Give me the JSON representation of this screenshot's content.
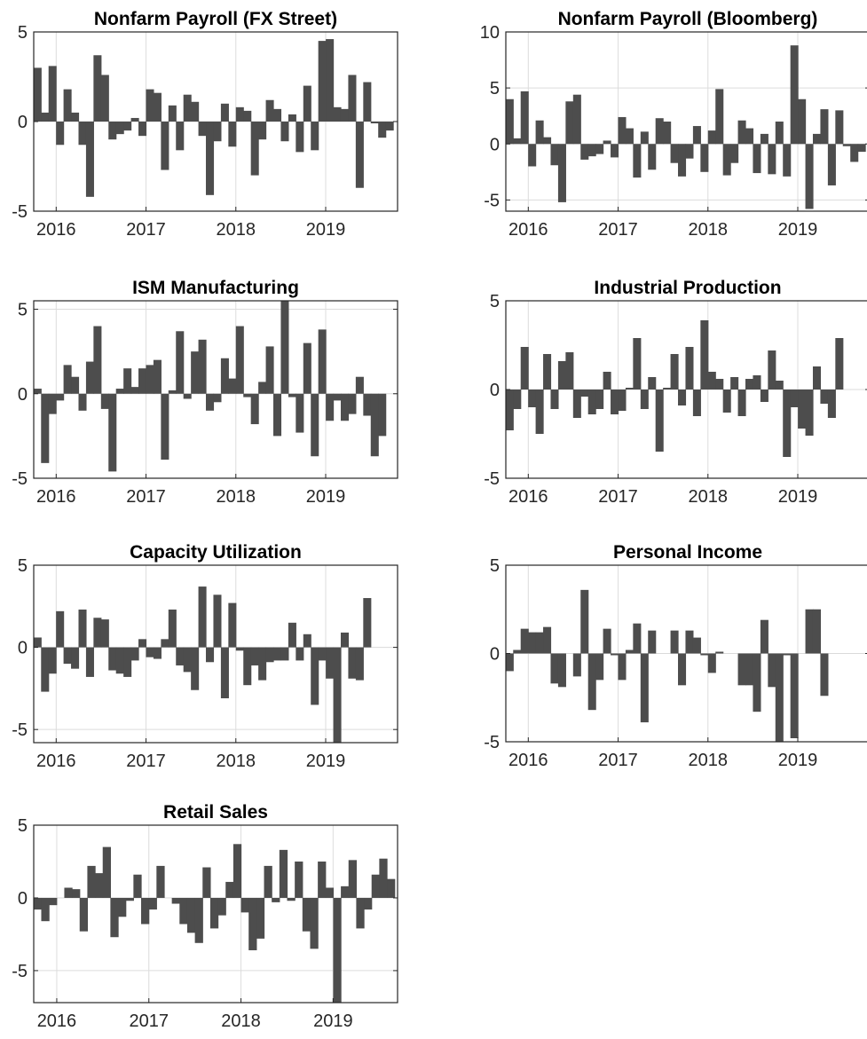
{
  "chart_data": [
    {
      "type": "bar",
      "title": "Nonfarm Payroll (FX Street)",
      "ylim": [
        -5,
        5
      ],
      "xlim": [
        2015.75,
        2019.8
      ],
      "yticks": [
        -5,
        0,
        5
      ],
      "xticks": [
        2016,
        2017,
        2018,
        2019
      ],
      "grid": true,
      "bar_color": "#4d4d4d",
      "x_start": 2015.79,
      "x_step": 0.0834,
      "values": [
        3.0,
        0.5,
        3.1,
        -1.3,
        1.8,
        0.5,
        -1.3,
        -4.2,
        3.7,
        2.6,
        -1.0,
        -0.7,
        -0.5,
        0.2,
        -0.8,
        1.8,
        1.6,
        -2.7,
        0.9,
        -1.6,
        1.5,
        1.1,
        -0.8,
        -4.1,
        -1.1,
        1.0,
        -1.4,
        0.8,
        0.6,
        -3.0,
        -1.0,
        1.2,
        0.7,
        -1.1,
        0.4,
        -1.7,
        2.0,
        -1.6,
        4.5,
        4.6,
        0.8,
        0.7,
        2.6,
        -3.7,
        2.2,
        -0.1,
        -0.9,
        -0.5
      ]
    },
    {
      "type": "bar",
      "title": "Nonfarm Payroll (Bloomberg)",
      "ylim": [
        -6,
        10
      ],
      "xlim": [
        2015.75,
        2019.8
      ],
      "yticks": [
        -5,
        0,
        5,
        10
      ],
      "xticks": [
        2016,
        2017,
        2018,
        2019
      ],
      "grid": true,
      "bar_color": "#4d4d4d",
      "x_start": 2015.79,
      "x_step": 0.0834,
      "values": [
        4.0,
        0.5,
        4.7,
        -2.0,
        2.1,
        0.6,
        -1.9,
        -5.2,
        3.8,
        4.4,
        -1.4,
        -1.1,
        -0.9,
        0.3,
        -1.2,
        2.4,
        1.4,
        -3.0,
        1.1,
        -2.3,
        2.3,
        2.0,
        -1.7,
        -2.9,
        -1.3,
        1.6,
        -2.5,
        1.2,
        4.9,
        -2.8,
        -1.7,
        2.1,
        1.4,
        -2.6,
        0.9,
        -2.7,
        2.0,
        -2.9,
        8.8,
        4.0,
        -5.8,
        0.9,
        3.1,
        -3.7,
        3.0,
        -0.2,
        -1.6,
        -0.7
      ]
    },
    {
      "type": "bar",
      "title": "ISM Manufacturing",
      "ylim": [
        -5,
        5.5
      ],
      "xlim": [
        2015.75,
        2019.8
      ],
      "yticks": [
        -5,
        0,
        5
      ],
      "xticks": [
        2016,
        2017,
        2018,
        2019
      ],
      "grid": true,
      "bar_color": "#4d4d4d",
      "x_start": 2015.79,
      "x_step": 0.0834,
      "values": [
        0.3,
        -4.1,
        -1.2,
        -0.4,
        1.7,
        1.0,
        -1.0,
        1.9,
        4.0,
        -0.9,
        -4.6,
        0.3,
        1.5,
        0.4,
        1.5,
        1.7,
        2.0,
        -3.9,
        0.2,
        3.7,
        -0.3,
        2.5,
        3.2,
        -1.0,
        -0.5,
        2.1,
        0.9,
        4.0,
        -0.2,
        -1.8,
        0.7,
        2.8,
        -2.5,
        5.5,
        -0.2,
        -2.3,
        3.0,
        -3.7,
        3.8,
        -1.6,
        -0.4,
        -1.6,
        -1.2,
        1.0,
        -1.3,
        -3.7,
        -2.5,
        0.0
      ]
    },
    {
      "type": "bar",
      "title": "Industrial Production",
      "ylim": [
        -5,
        5
      ],
      "xlim": [
        2015.75,
        2019.8
      ],
      "yticks": [
        -5,
        0,
        5
      ],
      "xticks": [
        2016,
        2017,
        2018,
        2019
      ],
      "grid": true,
      "bar_color": "#4d4d4d",
      "x_start": 2015.79,
      "x_step": 0.0834,
      "values": [
        -2.3,
        -1.1,
        2.4,
        -1.0,
        -2.5,
        2.0,
        -1.1,
        1.6,
        2.1,
        -1.6,
        -0.4,
        -1.4,
        -1.1,
        1.0,
        -1.4,
        -1.2,
        0.1,
        2.9,
        -1.1,
        0.7,
        -3.5,
        0.1,
        2.0,
        -0.9,
        2.4,
        -1.5,
        3.9,
        1.0,
        0.6,
        -1.3,
        0.7,
        -1.5,
        0.6,
        0.8,
        -0.7,
        2.2,
        0.5,
        -3.8,
        -1.0,
        -2.2,
        -2.6,
        1.3,
        -0.8,
        -1.6,
        2.9,
        0.0,
        0.0,
        0.0
      ]
    },
    {
      "type": "bar",
      "title": "Capacity Utilization",
      "ylim": [
        -5.8,
        5
      ],
      "xlim": [
        2015.75,
        2019.8
      ],
      "yticks": [
        -5,
        0,
        5
      ],
      "xticks": [
        2016,
        2017,
        2018,
        2019
      ],
      "grid": true,
      "bar_color": "#4d4d4d",
      "x_start": 2015.79,
      "x_step": 0.0834,
      "values": [
        0.6,
        -2.7,
        -1.6,
        2.2,
        -1.0,
        -1.3,
        2.3,
        -1.8,
        1.8,
        1.7,
        -1.4,
        -1.6,
        -1.8,
        -0.8,
        0.5,
        -0.6,
        -0.7,
        0.5,
        2.3,
        -1.1,
        -1.5,
        -2.6,
        3.7,
        -0.9,
        3.2,
        -3.1,
        2.7,
        -0.2,
        -2.3,
        -1.1,
        -2.0,
        -0.9,
        -0.8,
        -0.8,
        1.5,
        -0.8,
        0.8,
        -3.5,
        -0.8,
        -1.9,
        -5.8,
        0.9,
        -1.9,
        -2.0,
        3.0,
        0.0,
        0.0,
        0.0
      ]
    },
    {
      "type": "bar",
      "title": "Personal Income",
      "ylim": [
        -5,
        5
      ],
      "xlim": [
        2015.75,
        2019.8
      ],
      "yticks": [
        -5,
        0,
        5
      ],
      "xticks": [
        2016,
        2017,
        2018,
        2019
      ],
      "grid": true,
      "bar_color": "#4d4d4d",
      "x_start": 2015.79,
      "x_step": 0.0834,
      "values": [
        -1.0,
        0.2,
        1.4,
        1.2,
        1.2,
        1.5,
        -1.7,
        -1.9,
        0.0,
        -1.3,
        3.6,
        -3.2,
        -1.5,
        1.4,
        -0.1,
        -1.5,
        0.2,
        1.7,
        -3.9,
        1.3,
        0.0,
        0.0,
        1.3,
        -1.8,
        1.3,
        0.9,
        -0.1,
        -1.1,
        0.1,
        0.0,
        0.0,
        -1.8,
        -1.8,
        -3.3,
        1.9,
        -1.9,
        -5.0,
        -0.1,
        -4.8,
        0.0,
        2.5,
        2.5,
        -2.4,
        0.0,
        0.0,
        0.0,
        0.0,
        0.0
      ]
    },
    {
      "type": "bar",
      "title": "Retail Sales",
      "ylim": [
        -7.2,
        5
      ],
      "xlim": [
        2015.75,
        2019.7
      ],
      "yticks": [
        -5,
        0,
        5
      ],
      "xticks": [
        2016,
        2017,
        2018,
        2019
      ],
      "grid": true,
      "bar_color": "#4d4d4d",
      "x_start": 2015.79,
      "x_step": 0.0834,
      "values": [
        -0.8,
        -1.6,
        -0.5,
        0.0,
        0.7,
        0.6,
        -2.3,
        2.2,
        1.7,
        3.5,
        -2.7,
        -1.3,
        -0.2,
        1.6,
        -1.8,
        -0.8,
        2.2,
        0.0,
        -0.4,
        -1.8,
        -2.4,
        -3.1,
        2.1,
        -2.1,
        -1.2,
        1.1,
        3.7,
        -1.0,
        -3.6,
        -2.8,
        2.2,
        -0.3,
        3.3,
        -0.2,
        2.5,
        -2.3,
        -3.5,
        2.5,
        0.7,
        -7.2,
        0.8,
        2.6,
        -2.1,
        -0.8,
        1.6,
        2.7,
        1.3,
        0.0
      ]
    }
  ]
}
